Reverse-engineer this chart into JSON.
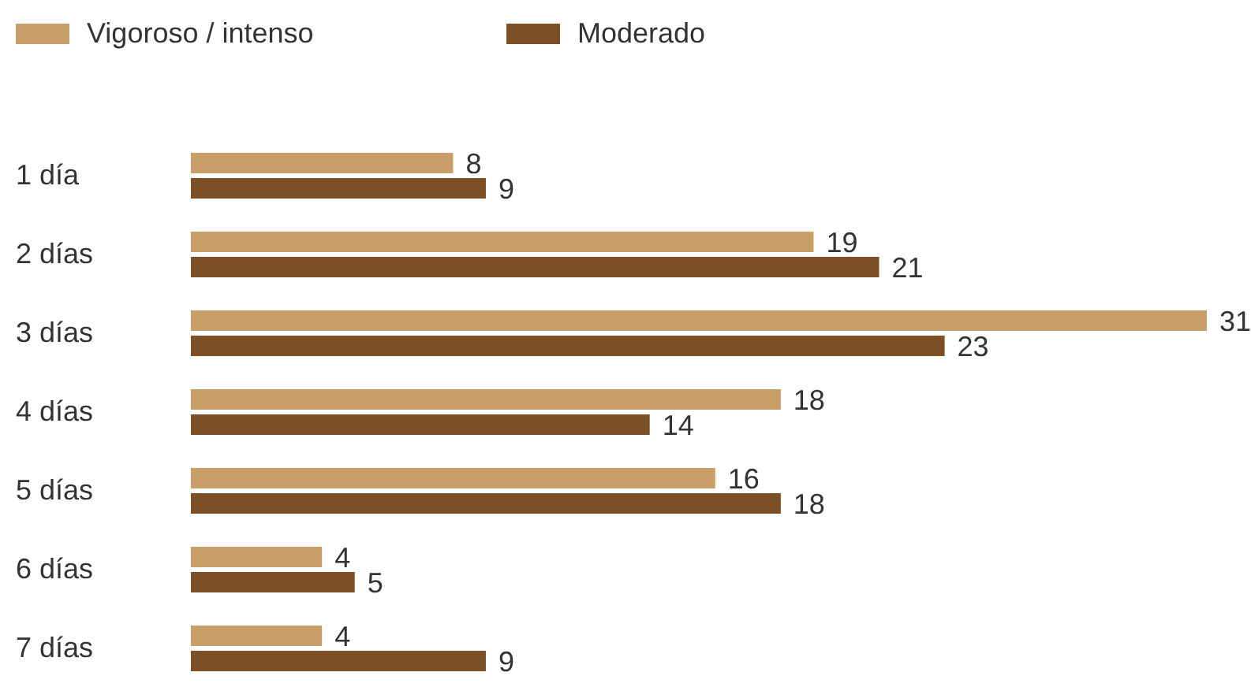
{
  "chart_data": {
    "type": "bar",
    "orientation": "horizontal",
    "categories": [
      "1 día",
      "2 días",
      "3 días",
      "4 días",
      "5 días",
      "6 días",
      "7 días"
    ],
    "series": [
      {
        "name": "Vigoroso / intenso",
        "color": "#c99f69",
        "values": [
          8,
          19,
          31,
          18,
          16,
          4,
          4
        ]
      },
      {
        "name": "Moderado",
        "color": "#7d4f25",
        "values": [
          9,
          21,
          23,
          14,
          18,
          5,
          9
        ]
      }
    ],
    "data_labels": true,
    "legend": "top left",
    "tick_labels": "y"
  }
}
